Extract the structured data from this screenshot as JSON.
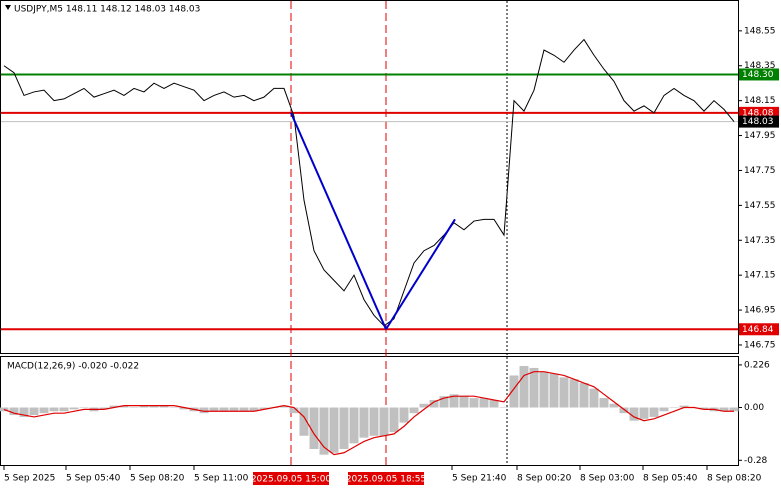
{
  "chart_data": [
    {
      "type": "line",
      "title": "USDJPY,M5  148.11 148.12 148.03 148.03",
      "xlim": [
        -0.4,
        73.4
      ],
      "ylim": [
        146.704,
        148.721
      ],
      "yticks": [
        148.55,
        148.35,
        148.15,
        147.95,
        147.75,
        147.55,
        147.35,
        147.15,
        146.95,
        146.75
      ],
      "series": [
        {
          "color": "#000000",
          "values": [
            148.35,
            148.31,
            148.18,
            148.2,
            148.21,
            148.15,
            148.16,
            148.19,
            148.22,
            148.17,
            148.19,
            148.21,
            148.18,
            148.22,
            148.2,
            148.25,
            148.22,
            148.25,
            148.23,
            148.21,
            148.15,
            148.18,
            148.2,
            148.17,
            148.18,
            148.15,
            148.17,
            148.22,
            148.22,
            148.06,
            147.58,
            147.29,
            147.18,
            147.12,
            147.06,
            147.15,
            147.01,
            146.92,
            146.86,
            146.9,
            147.06,
            147.22,
            147.29,
            147.32,
            147.38,
            147.45,
            147.41,
            147.46,
            147.47,
            147.47,
            147.38,
            148.15,
            148.09,
            148.21,
            148.44,
            148.41,
            148.37,
            148.44,
            148.5,
            148.41,
            148.33,
            148.26,
            148.15,
            148.09,
            148.12,
            148.08,
            148.18,
            148.22,
            148.18,
            148.15,
            148.09,
            148.15,
            148.1,
            148.03
          ]
        }
      ],
      "trendlines": [
        {
          "color": "#0000cc",
          "x": [
            28.7,
            38.2
          ],
          "values": [
            148.08,
            146.84
          ]
        },
        {
          "color": "#0000cc",
          "x": [
            38.2,
            45.1
          ],
          "values": [
            146.84,
            147.47
          ]
        }
      ],
      "hlines": [
        {
          "value": 148.3,
          "label": "148.30",
          "color": "#008000",
          "label_color": "#008000"
        },
        {
          "value": 148.08,
          "label": "148.08",
          "color": "#e00000",
          "label_color": "#e00000"
        },
        {
          "value": 146.84,
          "label": "146.84",
          "color": "#e00000",
          "label_color": "#e00000"
        },
        {
          "value": 148.03,
          "label": "148.03",
          "color": "#c0c0c0",
          "label_color": "#000000"
        }
      ],
      "vlines": [
        {
          "x": 28.7,
          "label": "2025.09.05 15:00",
          "color": "#e00000",
          "style": "dashed"
        },
        {
          "x": 38.2,
          "label": "2025.09.05 18:55",
          "color": "#e00000",
          "style": "dashed"
        },
        {
          "x": 50.3,
          "color": "#000000",
          "style": "dotted"
        }
      ]
    },
    {
      "type": "macd",
      "title": "MACD(12,26,9) -0.020 -0.022",
      "xlim": [
        -0.4,
        73.4
      ],
      "ylim": [
        -0.305,
        0.268
      ],
      "yticks": [
        0.226,
        {
          "value": 0,
          "label": "0.00"
        },
        -0.28
      ],
      "xticks": [
        {
          "value": 0,
          "label": "5 Sep 2025"
        },
        {
          "value": 6.2,
          "label": "5 Sep 05:40"
        },
        {
          "value": 12.6,
          "label": "5 Sep 08:20"
        },
        {
          "value": 19,
          "label": "5 Sep 11:00"
        },
        {
          "value": 44.8,
          "label": "5 Sep 21:40"
        },
        {
          "value": 51.3,
          "label": "8 Sep 00:20"
        },
        {
          "value": 57.6,
          "label": "8 Sep 03:00"
        },
        {
          "value": 63.9,
          "label": "8 Sep 05:40"
        },
        {
          "value": 70.3,
          "label": "8 Sep 08:20"
        }
      ],
      "series": [
        {
          "type": "bar",
          "color": "#c0c0c0",
          "values": [
            -0.02,
            -0.04,
            -0.05,
            -0.04,
            -0.03,
            -0.02,
            -0.02,
            -0.01,
            0,
            -0.02,
            -0.01,
            0.01,
            0.01,
            0,
            0.01,
            0.01,
            0.01,
            0,
            -0.01,
            -0.02,
            -0.03,
            -0.02,
            -0.02,
            -0.02,
            -0.02,
            -0.02,
            -0.01,
            0,
            0.01,
            -0.03,
            -0.15,
            -0.22,
            -0.25,
            -0.24,
            -0.22,
            -0.19,
            -0.16,
            -0.15,
            -0.15,
            -0.13,
            -0.08,
            -0.03,
            0.02,
            0.04,
            0.06,
            0.07,
            0.06,
            0.05,
            0.05,
            0.04,
            0,
            0.17,
            0.22,
            0.21,
            0.19,
            0.18,
            0.16,
            0.15,
            0.13,
            0.1,
            0.05,
            0.02,
            -0.03,
            -0.07,
            -0.06,
            -0.05,
            -0.02,
            0,
            0.01,
            0,
            -0.01,
            -0.02,
            -0.02,
            -0.02
          ]
        },
        {
          "type": "line",
          "color": "#e00000",
          "values": [
            -0.01,
            -0.03,
            -0.04,
            -0.05,
            -0.04,
            -0.03,
            -0.03,
            -0.02,
            -0.01,
            -0.01,
            -0.01,
            0,
            0.01,
            0.01,
            0.01,
            0.01,
            0.01,
            0.01,
            0,
            -0.01,
            -0.02,
            -0.02,
            -0.02,
            -0.02,
            -0.02,
            -0.02,
            -0.01,
            0,
            0.01,
            0,
            -0.05,
            -0.14,
            -0.21,
            -0.25,
            -0.24,
            -0.21,
            -0.18,
            -0.16,
            -0.15,
            -0.14,
            -0.1,
            -0.05,
            -0.01,
            0.03,
            0.05,
            0.06,
            0.06,
            0.06,
            0.05,
            0.04,
            0.03,
            0.1,
            0.17,
            0.19,
            0.19,
            0.18,
            0.17,
            0.15,
            0.13,
            0.11,
            0.07,
            0.03,
            -0.01,
            -0.05,
            -0.07,
            -0.06,
            -0.04,
            -0.02,
            0,
            0,
            -0.01,
            -0.01,
            -0.02,
            -0.02
          ]
        }
      ]
    }
  ]
}
